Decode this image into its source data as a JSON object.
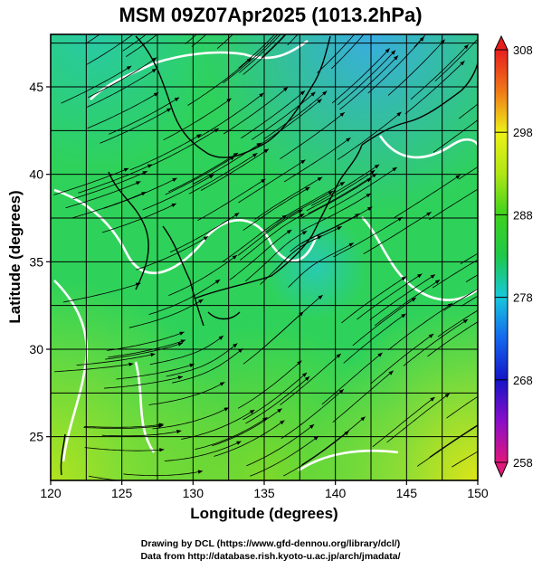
{
  "title": "MSM 09Z07Apr2025 (1013.2hPa)",
  "x_axis": {
    "label": "Longitude (degrees)",
    "min": 120,
    "max": 150,
    "ticks": [
      "120",
      "125",
      "130",
      "135",
      "140",
      "145",
      "150"
    ]
  },
  "y_axis": {
    "label": "Latitude  (degrees)",
    "min": 22.5,
    "max": 48,
    "ticks": [
      "25",
      "30",
      "35",
      "40",
      "45"
    ]
  },
  "colorbar": {
    "min": 258,
    "max": 308,
    "labels": [
      "308",
      "298",
      "288",
      "278",
      "268",
      "258"
    ]
  },
  "credits": {
    "line1": "Drawing by DCL (https://www.gfd-dennou.org/library/dcl/)",
    "line2": "Data from http://database.rish.kyoto-u.ac.jp/arch/jmadata/"
  }
}
